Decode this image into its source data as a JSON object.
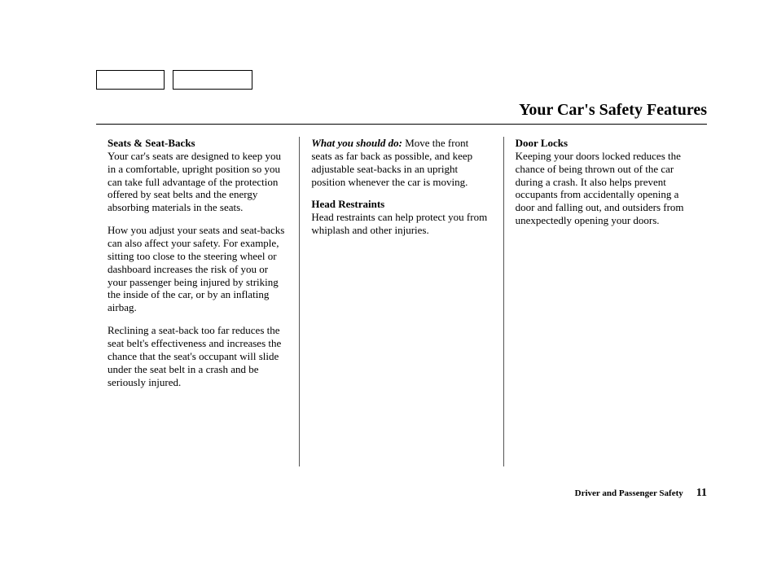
{
  "page": {
    "title": "Your Car's Safety Features",
    "footer_label": "Driver and Passenger Safety",
    "footer_page": "11"
  },
  "col1": {
    "h1": "Seats & Seat-Backs",
    "p1": "Your car's seats are designed to keep you in a comfortable, upright position so you can take full advantage of the protection offered by seat belts and the energy absorbing materials in the seats.",
    "p2": "How you adjust your seats and seat-backs can also affect your safety. For example, sitting too close to the steering wheel or dashboard increases the risk of you or your passenger being injured by striking the inside of the car, or by an inflating airbag.",
    "p3": "Reclining a seat-back too far reduces the seat belt's effectiveness and increases the chance that the seat's occupant will slide under the seat belt in a crash and be seriously injured."
  },
  "col2": {
    "lead_emph": "What you should do:",
    "lead_rest": " Move the front seats as far back as possible, and keep adjustable seat-backs in an upright position whenever the car is moving.",
    "h2": "Head Restraints",
    "p2": "Head restraints can help protect you from whiplash and other injuries."
  },
  "col3": {
    "h1": "Door Locks",
    "p1": "Keeping your doors locked reduces the chance of being thrown out of the car during a crash. It also helps prevent occupants from accidentally opening a door and falling out, and outsiders from unexpectedly opening your doors."
  }
}
